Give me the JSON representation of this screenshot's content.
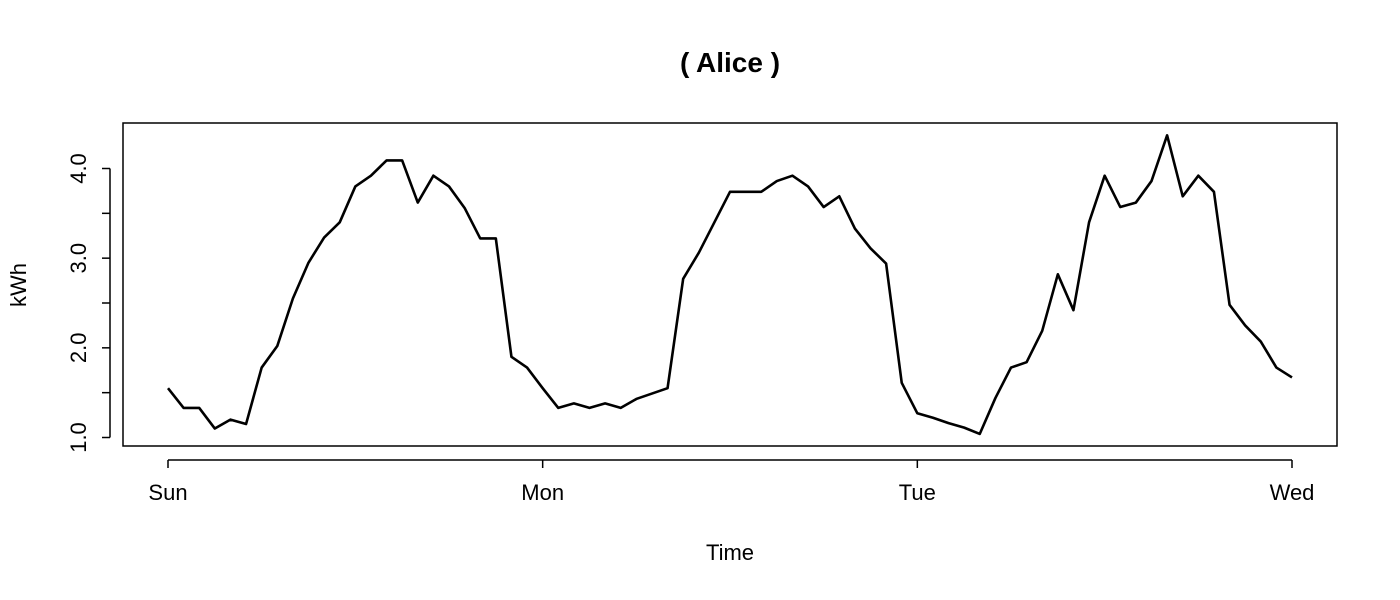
{
  "chart_data": {
    "type": "line",
    "title": "( Alice )",
    "xlabel": "Time",
    "ylabel": "kWh",
    "x_ticks": [
      "Sun",
      "Mon",
      "Tue",
      "Wed"
    ],
    "y_ticks": [
      "1.0",
      "2.0",
      "3.0",
      "4.0"
    ],
    "xlim": [
      0,
      72
    ],
    "ylim": [
      1.0,
      4.4
    ],
    "grid": false,
    "series": [
      {
        "values": [
          1.55,
          1.33,
          1.33,
          1.1,
          1.2,
          1.15,
          1.78,
          2.02,
          2.55,
          2.95,
          3.23,
          3.4,
          3.8,
          3.92,
          4.09,
          4.09,
          3.62,
          3.92,
          3.8,
          3.56,
          3.22,
          3.22,
          1.9,
          1.78,
          1.55,
          1.33,
          1.38,
          1.33,
          1.38,
          1.33,
          1.43,
          1.49,
          1.55,
          2.77,
          3.06,
          3.4,
          3.74,
          3.74,
          3.74,
          3.86,
          3.92,
          3.8,
          3.57,
          3.69,
          3.33,
          3.11,
          2.94,
          1.61,
          1.27,
          1.22,
          1.16,
          1.11,
          1.04,
          1.44,
          1.78,
          1.84,
          2.19,
          2.82,
          2.42,
          3.4,
          3.92,
          3.57,
          3.62,
          3.86,
          4.37,
          3.69,
          3.92,
          3.74,
          2.48,
          2.25,
          2.07,
          1.78,
          1.67
        ]
      }
    ]
  }
}
